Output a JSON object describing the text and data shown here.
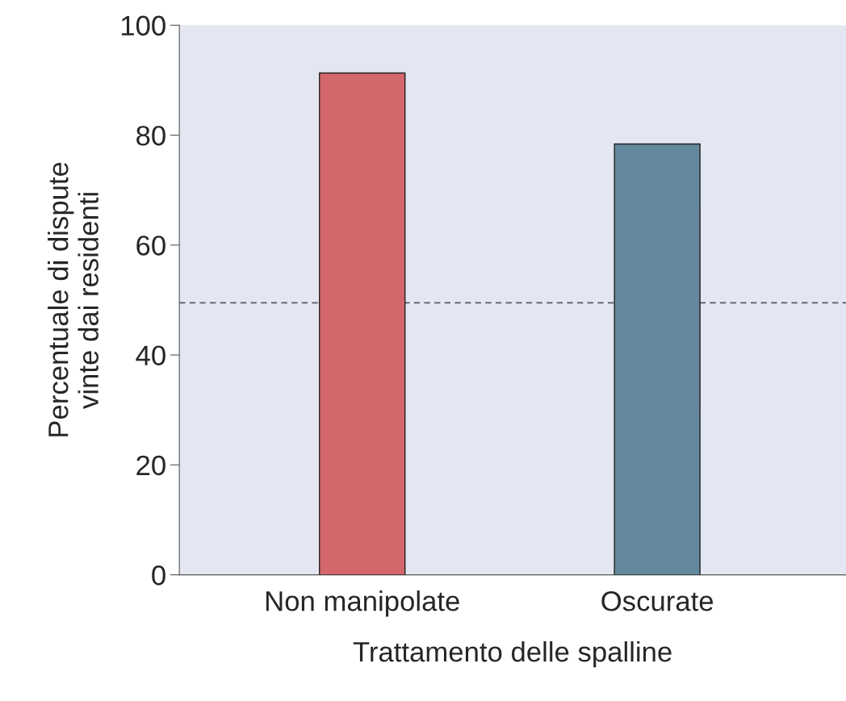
{
  "chart_data": {
    "type": "bar",
    "xlabel": "Trattamento delle spalline",
    "ylabel": "Percentuale di dispute\nvinte dai residenti",
    "categories": [
      "Non manipolate",
      "Oscurate"
    ],
    "values": [
      91.3,
      78.4
    ],
    "colors": [
      "#d4676c",
      "#64889e"
    ],
    "ylim": [
      0,
      100
    ],
    "yticks": [
      0,
      20,
      40,
      60,
      80,
      100
    ],
    "grid": false,
    "ref_lines": [
      {
        "axis": "y",
        "value": 49.5,
        "color": "#555a66",
        "line_style": "dashed"
      }
    ]
  }
}
